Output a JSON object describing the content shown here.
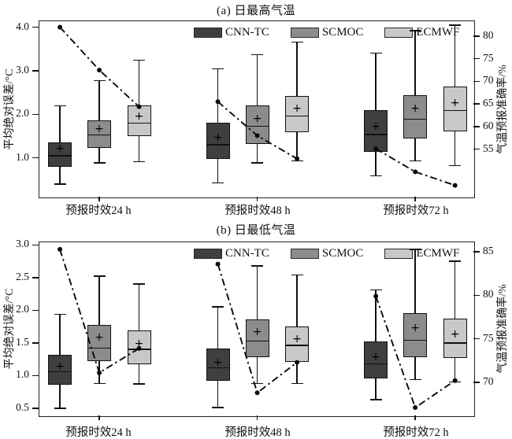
{
  "chart_data": {
    "type": "box",
    "description_note": "Dual-axis grouped box plots with dash-dot accuracy line; markers: mean '+', accuracy points filled circles",
    "mean_marker": "+",
    "accuracy_line_style": "dash-dot",
    "line_color": "#0a0a0a",
    "models": [
      {
        "name": "CNN-TC",
        "color": "#3f3f3f"
      },
      {
        "name": "SCMOC",
        "color": "#8c8c8c"
      },
      {
        "name": "ECMWF",
        "color": "#c8c8c8"
      }
    ],
    "legend_position": "top-center-inside",
    "panels": [
      {
        "title": "(a) 日最高气温",
        "axis_left": {
          "label": "平均绝对误差/°C",
          "range": [
            0.11,
            4.14
          ],
          "ticks": [
            {
              "value": 1.0,
              "label": "1.0"
            },
            {
              "value": 2.0,
              "label": "2.0"
            },
            {
              "value": 3.0,
              "label": "3.0"
            },
            {
              "value": 4.0,
              "label": "4.0"
            }
          ]
        },
        "axis_right": {
          "label": "气温预报准确率/%",
          "range": [
            44.5,
            83.3
          ],
          "ticks": [
            {
              "value": 55,
              "label": "55"
            },
            {
              "value": 60,
              "label": "60"
            },
            {
              "value": 65,
              "label": "65"
            },
            {
              "value": 70,
              "label": "70"
            },
            {
              "value": 75,
              "label": "75"
            },
            {
              "value": 80,
              "label": "80"
            }
          ]
        },
        "groups": [
          {
            "label": "预报时效24 h",
            "boxes": [
              {
                "low": 0.4,
                "q1": 0.79,
                "median": 1.05,
                "mean": 1.2,
                "q3": 1.36,
                "high": 2.2
              },
              {
                "low": 0.89,
                "q1": 1.23,
                "median": 1.53,
                "mean": 1.64,
                "q3": 1.86,
                "high": 2.77
              },
              {
                "low": 0.91,
                "q1": 1.5,
                "median": 1.8,
                "mean": 1.93,
                "q3": 2.2,
                "high": 3.24
              }
            ],
            "accuracy": [
              82.0,
              72.5,
              64.4
            ]
          },
          {
            "label": "预报时效48 h",
            "boxes": [
              {
                "low": 0.43,
                "q1": 0.98,
                "median": 1.3,
                "mean": 1.44,
                "q3": 1.8,
                "high": 3.05
              },
              {
                "low": 0.89,
                "q1": 1.32,
                "median": 1.73,
                "mean": 1.89,
                "q3": 2.21,
                "high": 3.37
              },
              {
                "low": 0.93,
                "q1": 1.59,
                "median": 1.96,
                "mean": 2.11,
                "q3": 2.43,
                "high": 3.66
              }
            ],
            "accuracy": [
              65.5,
              58.0,
              52.9
            ]
          },
          {
            "label": "预报时效72 h",
            "boxes": [
              {
                "low": 0.59,
                "q1": 1.14,
                "median": 1.54,
                "mean": 1.7,
                "q3": 2.09,
                "high": 3.41
              },
              {
                "low": 0.93,
                "q1": 1.45,
                "median": 1.89,
                "mean": 2.11,
                "q3": 2.45,
                "high": 3.92
              },
              {
                "low": 0.82,
                "q1": 1.61,
                "median": 2.09,
                "mean": 2.25,
                "q3": 2.64,
                "high": 4.05
              }
            ],
            "accuracy": [
              55.1,
              50.0,
              47.0
            ]
          }
        ]
      },
      {
        "title": "(b) 日最低气温",
        "axis_left": {
          "label": "平均绝对误差/°C",
          "range": [
            0.39,
            3.04
          ],
          "ticks": [
            {
              "value": 0.5,
              "label": "0.5"
            },
            {
              "value": 1.0,
              "label": "1.0"
            },
            {
              "value": 1.5,
              "label": "1.5"
            },
            {
              "value": 2.0,
              "label": "2.0"
            },
            {
              "value": 2.5,
              "label": "2.5"
            },
            {
              "value": 3.0,
              "label": "3.0"
            }
          ]
        },
        "axis_right": {
          "label": "气温预报准确率/%",
          "range": [
            66.2,
            86.1
          ],
          "ticks": [
            {
              "value": 70,
              "label": "70"
            },
            {
              "value": 75,
              "label": "75"
            },
            {
              "value": 80,
              "label": "80"
            },
            {
              "value": 85,
              "label": "85"
            }
          ]
        },
        "groups": [
          {
            "label": "预报时效24 h",
            "boxes": [
              {
                "low": 0.5,
                "q1": 0.86,
                "median": 1.06,
                "mean": 1.12,
                "q3": 1.32,
                "high": 1.94
              },
              {
                "low": 0.88,
                "q1": 1.22,
                "median": 1.42,
                "mean": 1.57,
                "q3": 1.77,
                "high": 2.52
              },
              {
                "low": 0.87,
                "q1": 1.17,
                "median": 1.4,
                "mean": 1.47,
                "q3": 1.69,
                "high": 2.4
              }
            ],
            "accuracy": [
              85.3,
              71.1,
              73.9
            ]
          },
          {
            "label": "预报时效48 h",
            "boxes": [
              {
                "low": 0.51,
                "q1": 0.92,
                "median": 1.12,
                "mean": 1.19,
                "q3": 1.41,
                "high": 2.05
              },
              {
                "low": 0.88,
                "q1": 1.28,
                "median": 1.53,
                "mean": 1.66,
                "q3": 1.86,
                "high": 2.68
              },
              {
                "low": 0.88,
                "q1": 1.21,
                "median": 1.46,
                "mean": 1.55,
                "q3": 1.75,
                "high": 2.54
              }
            ],
            "accuracy": [
              83.6,
              68.8,
              72.3
            ]
          },
          {
            "label": "预报时效72 h",
            "boxes": [
              {
                "low": 0.63,
                "q1": 0.96,
                "median": 1.18,
                "mean": 1.27,
                "q3": 1.52,
                "high": 2.31
              },
              {
                "low": 0.94,
                "q1": 1.28,
                "median": 1.54,
                "mean": 1.72,
                "q3": 1.95,
                "high": 2.93
              },
              {
                "low": 0.9,
                "q1": 1.27,
                "median": 1.5,
                "mean": 1.62,
                "q3": 1.87,
                "high": 2.75
              }
            ],
            "accuracy": [
              79.9,
              67.1,
              70.2
            ]
          }
        ]
      }
    ]
  }
}
